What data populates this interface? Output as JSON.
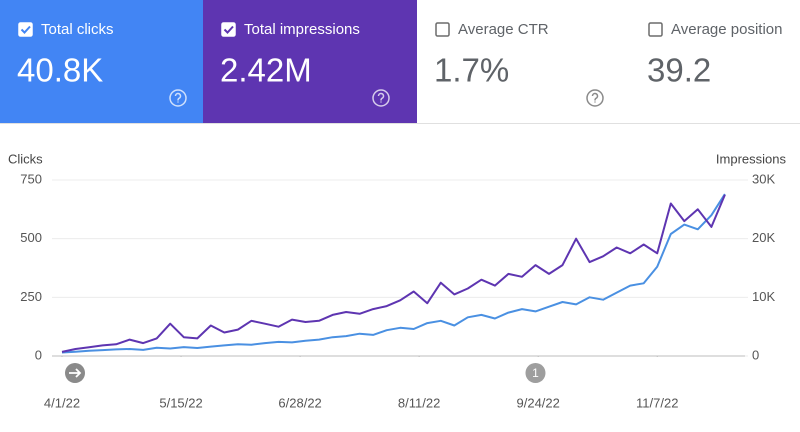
{
  "cards": [
    {
      "label": "Total clicks",
      "value": "40.8K",
      "checked": true,
      "color": "#4285f4",
      "help": true
    },
    {
      "label": "Total impressions",
      "value": "2.42M",
      "checked": true,
      "color": "#5e35b1",
      "help": true
    },
    {
      "label": "Average CTR",
      "value": "1.7%",
      "checked": false,
      "color": "#ffffff",
      "help": true
    },
    {
      "label": "Average position",
      "value": "39.2",
      "checked": false,
      "color": "#ffffff",
      "help": false
    }
  ],
  "chart_data": {
    "type": "line",
    "x": [
      "2022-04-01",
      "2022-04-06",
      "2022-04-11",
      "2022-04-16",
      "2022-04-21",
      "2022-04-26",
      "2022-05-01",
      "2022-05-06",
      "2022-05-11",
      "2022-05-16",
      "2022-05-21",
      "2022-05-26",
      "2022-05-31",
      "2022-06-05",
      "2022-06-10",
      "2022-06-15",
      "2022-06-20",
      "2022-06-25",
      "2022-06-30",
      "2022-07-05",
      "2022-07-10",
      "2022-07-15",
      "2022-07-20",
      "2022-07-25",
      "2022-07-30",
      "2022-08-04",
      "2022-08-09",
      "2022-08-14",
      "2022-08-19",
      "2022-08-24",
      "2022-08-29",
      "2022-09-03",
      "2022-09-08",
      "2022-09-13",
      "2022-09-18",
      "2022-09-23",
      "2022-09-28",
      "2022-10-03",
      "2022-10-08",
      "2022-10-13",
      "2022-10-18",
      "2022-10-23",
      "2022-10-28",
      "2022-11-02",
      "2022-11-07",
      "2022-11-12",
      "2022-11-17",
      "2022-11-22",
      "2022-11-27",
      "2022-12-02"
    ],
    "series": [
      {
        "name": "Clicks",
        "color": "#4a90e2",
        "values": [
          15,
          18,
          22,
          25,
          28,
          30,
          26,
          35,
          32,
          38,
          34,
          40,
          45,
          50,
          48,
          55,
          60,
          58,
          65,
          70,
          80,
          85,
          95,
          90,
          110,
          120,
          115,
          140,
          150,
          130,
          165,
          175,
          160,
          185,
          200,
          190,
          210,
          230,
          220,
          250,
          240,
          270,
          300,
          310,
          380,
          520,
          560,
          540,
          600,
          690
        ]
      },
      {
        "name": "Impressions",
        "color": "#5e35b1",
        "axis": "y2",
        "values": [
          700,
          1200,
          1500,
          1800,
          2000,
          2800,
          2200,
          3000,
          5500,
          3200,
          3000,
          5200,
          4000,
          4500,
          6000,
          5500,
          5000,
          6200,
          5800,
          6000,
          7000,
          7500,
          7200,
          8000,
          8500,
          9500,
          11000,
          9000,
          12500,
          10500,
          11500,
          13000,
          12000,
          14000,
          13500,
          15500,
          14000,
          15500,
          20000,
          16000,
          17000,
          18500,
          17500,
          19000,
          17500,
          26000,
          23000,
          25000,
          22000,
          27500
        ]
      }
    ],
    "xlim": [
      "2022-04-01",
      "2022-12-05"
    ],
    "xticks": [
      {
        "value": "2022-04-01",
        "label": "4/1/22"
      },
      {
        "value": "2022-05-15",
        "label": "5/15/22"
      },
      {
        "value": "2022-06-28",
        "label": "6/28/22"
      },
      {
        "value": "2022-08-11",
        "label": "8/11/22"
      },
      {
        "value": "2022-09-24",
        "label": "9/24/22"
      },
      {
        "value": "2022-11-07",
        "label": "11/7/22"
      }
    ],
    "ylim": [
      0,
      750
    ],
    "yticks": [
      0,
      250,
      500,
      750
    ],
    "y2lim": [
      0,
      30000
    ],
    "y2ticks": [
      0,
      {
        "value": 10000,
        "label": "10K"
      },
      {
        "value": 20000,
        "label": "20K"
      },
      {
        "value": 30000,
        "label": "30K"
      }
    ],
    "ylabel": "Clicks",
    "y2label": "Impressions",
    "annotations": [
      {
        "label": "1",
        "x": "2022-09-23"
      }
    ],
    "grid": true
  }
}
